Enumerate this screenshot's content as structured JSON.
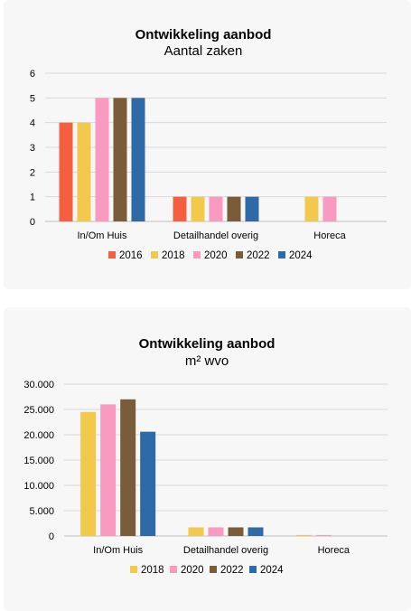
{
  "chart_data": [
    {
      "type": "bar",
      "title": "Ontwikkeling aanbod",
      "subtitle": "Aantal zaken",
      "categories": [
        "In/Om Huis",
        "Detailhandel overig",
        "Horeca"
      ],
      "y_ticks": [
        "0",
        "1",
        "2",
        "3",
        "4",
        "5",
        "6"
      ],
      "ylim": [
        0,
        6
      ],
      "grid": true,
      "legend_position": "bottom",
      "series": [
        {
          "name": "2016",
          "color": "#f4603f",
          "values": [
            4,
            1,
            null
          ]
        },
        {
          "name": "2018",
          "color": "#f2c94c",
          "values": [
            4,
            1,
            1
          ]
        },
        {
          "name": "2020",
          "color": "#f99ac0",
          "values": [
            5,
            1,
            1
          ]
        },
        {
          "name": "2022",
          "color": "#7a5c3a",
          "values": [
            5,
            1,
            null
          ]
        },
        {
          "name": "2024",
          "color": "#2e6aa8",
          "values": [
            5,
            1,
            null
          ]
        }
      ]
    },
    {
      "type": "bar",
      "title": "Ontwikkeling aanbod",
      "subtitle": "m² wvo",
      "categories": [
        "In/Om Huis",
        "Detailhandel overig",
        "Horeca"
      ],
      "y_ticks": [
        "0",
        "5.000",
        "10.000",
        "15.000",
        "20.000",
        "25.000",
        "30.000"
      ],
      "ylim": [
        0,
        30000
      ],
      "grid": true,
      "legend_position": "bottom",
      "series": [
        {
          "name": "2018",
          "color": "#f2c94c",
          "values": [
            24500,
            1700,
            200
          ]
        },
        {
          "name": "2020",
          "color": "#f99ac0",
          "values": [
            26000,
            1700,
            200
          ]
        },
        {
          "name": "2022",
          "color": "#7a5c3a",
          "values": [
            27000,
            1700,
            null
          ]
        },
        {
          "name": "2024",
          "color": "#2e6aa8",
          "values": [
            20600,
            1700,
            null
          ]
        }
      ]
    }
  ]
}
